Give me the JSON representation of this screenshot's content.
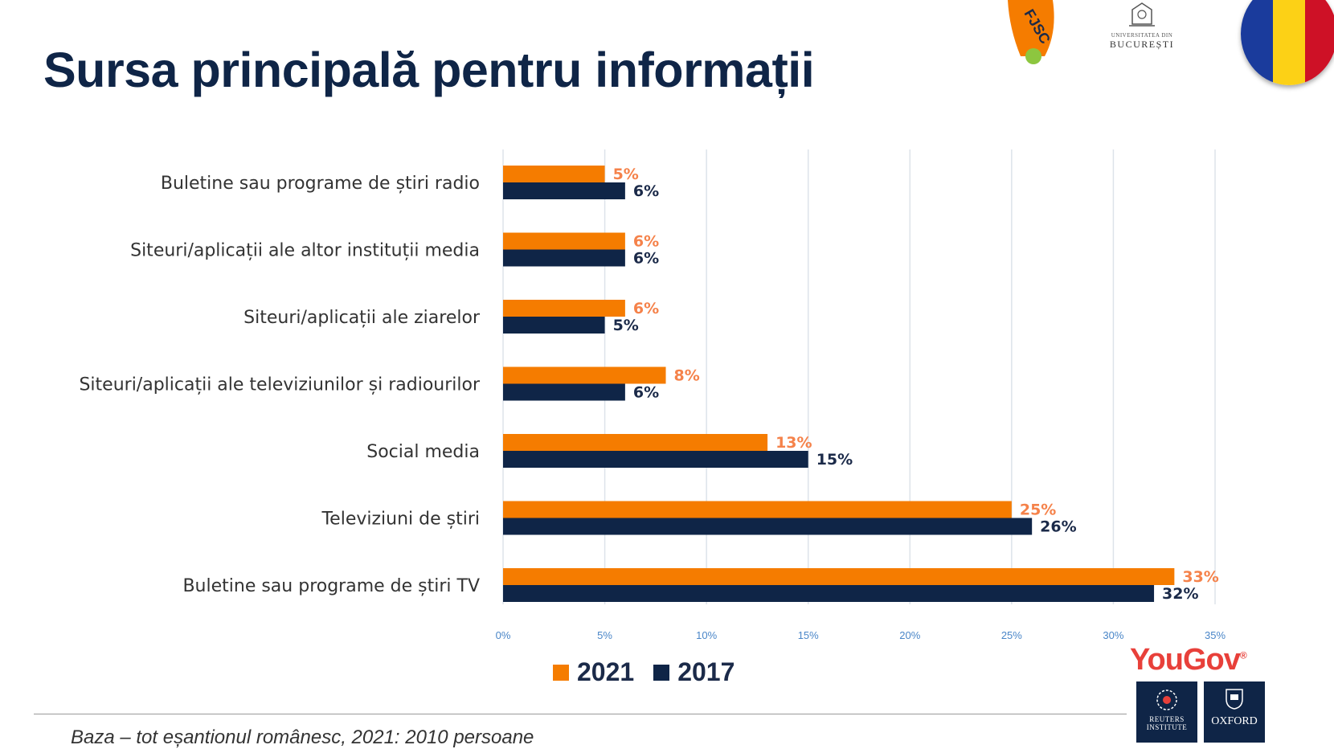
{
  "title": "Sursa principală pentru informații",
  "chart_data": {
    "type": "bar",
    "orientation": "horizontal",
    "categories": [
      "Buletine sau programe de știri radio",
      "Siteuri/aplicații ale altor instituții media",
      "Siteuri/aplicații ale ziarelor",
      "Siteuri/aplicații ale televiziunilor și radiourilor",
      "Social media",
      "Televiziuni de știri",
      "Buletine sau programe de știri TV"
    ],
    "series": [
      {
        "name": "2021",
        "color": "#f57c00",
        "label_color": "#f5824a",
        "values": [
          5,
          6,
          6,
          8,
          13,
          25,
          33
        ]
      },
      {
        "name": "2017",
        "color": "#0f2547",
        "label_color": "#1b2a49",
        "values": [
          6,
          6,
          5,
          6,
          15,
          26,
          32
        ]
      }
    ],
    "value_labels": {
      "2021": [
        "5%",
        "6%",
        "6%",
        "8%",
        "13%",
        "25%",
        "33%"
      ],
      "2017": [
        "6%",
        "6%",
        "5%",
        "6%",
        "15%",
        "26%",
        "32%"
      ]
    },
    "xlim": [
      0,
      35
    ],
    "xticks": [
      0,
      5,
      10,
      15,
      20,
      25,
      30,
      35
    ],
    "xtick_labels": [
      "0%",
      "5%",
      "10%",
      "15%",
      "20%",
      "25%",
      "30%",
      "35%"
    ],
    "grid": true,
    "legend_position": "bottom"
  },
  "legend": {
    "label_2021": "2021",
    "label_2017": "2017"
  },
  "footnote": "Baza – tot eșantionul românesc, 2021: 2010 persoane",
  "logos": {
    "fjsc": "FJSC",
    "unibuc_small": "UNIVERSITATEA DIN",
    "unibuc_big": "BUCUREȘTI",
    "yougov": "YouGov",
    "reuters": "REUTERS INSTITUTE",
    "oxford": "OXFORD"
  },
  "colors": {
    "orange": "#f57c00",
    "navy": "#0f2547",
    "flag_blue": "#1a3b9c",
    "flag_yellow": "#fcd116",
    "flag_red": "#ce1126"
  }
}
